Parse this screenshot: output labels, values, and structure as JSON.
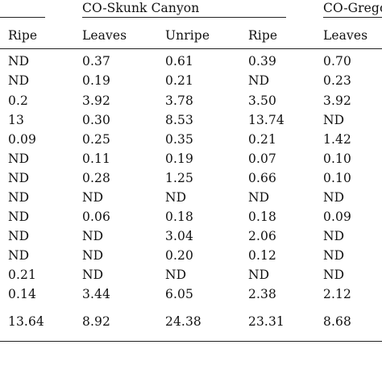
{
  "table": {
    "groups": [
      {
        "label": "CO-Skunk Canyon"
      },
      {
        "label": "CO-Grego"
      }
    ],
    "headers": [
      "Ripe",
      "Leaves",
      "Unripe",
      "Ripe",
      "Leaves"
    ],
    "rows": [
      [
        "ND",
        "0.37",
        "0.61",
        "0.39",
        "0.70"
      ],
      [
        "ND",
        "0.19",
        "0.21",
        "ND",
        "0.23"
      ],
      [
        "0.2",
        "3.92",
        "3.78",
        "3.50",
        "3.92"
      ],
      [
        "13",
        "0.30",
        "8.53",
        "13.74",
        "ND"
      ],
      [
        "0.09",
        "0.25",
        "0.35",
        "0.21",
        "1.42"
      ],
      [
        "ND",
        "0.11",
        "0.19",
        "0.07",
        "0.10"
      ],
      [
        "ND",
        "0.28",
        "1.25",
        "0.66",
        "0.10"
      ],
      [
        "ND",
        "ND",
        "ND",
        "ND",
        "ND"
      ],
      [
        "ND",
        "0.06",
        "0.18",
        "0.18",
        "0.09"
      ],
      [
        "ND",
        "ND",
        "3.04",
        "2.06",
        "ND"
      ],
      [
        "ND",
        "ND",
        "0.20",
        "0.12",
        "ND"
      ],
      [
        "0.21",
        "ND",
        "ND",
        "ND",
        "ND"
      ],
      [
        "0.14",
        "3.44",
        "6.05",
        "2.38",
        "2.12"
      ],
      [
        "13.64",
        "8.92",
        "24.38",
        "23.31",
        "8.68"
      ]
    ]
  }
}
